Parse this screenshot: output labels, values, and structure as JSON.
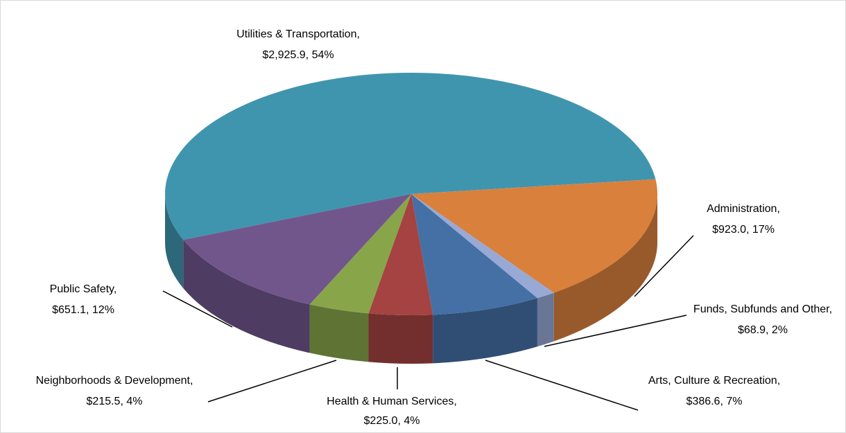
{
  "chart_data": {
    "type": "pie3d",
    "categories": [
      "Utilities & Transportation",
      "Administration",
      "Funds, Subfunds and Other",
      "Arts, Culture & Recreation",
      "Health & Human Services",
      "Neighborhoods & Development",
      "Public Safety"
    ],
    "values": [
      2925.9,
      923.0,
      68.9,
      386.6,
      225.0,
      215.5,
      651.1
    ],
    "value_labels": [
      "$2,925.9",
      "$923.0",
      "$68.9",
      "$386.6",
      "$225.0",
      "$215.5",
      "$651.1"
    ],
    "percent_labels": [
      "54%",
      "17%",
      "2%",
      "7%",
      "4%",
      "4%",
      "12%"
    ],
    "colors": [
      "#4095ae",
      "#d9803c",
      "#98a9d6",
      "#4470a6",
      "#a44342",
      "#88a54a",
      "#71568c"
    ]
  }
}
